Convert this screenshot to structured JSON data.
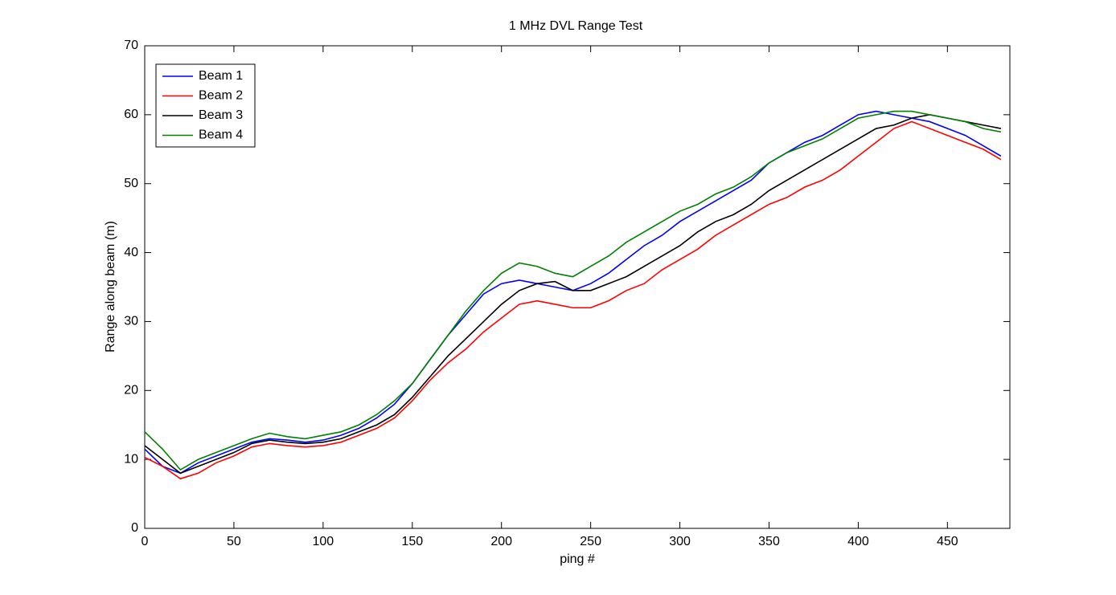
{
  "chart_data": {
    "type": "line",
    "title": "1 MHz DVL Range Test",
    "x_label": "ping #",
    "y_label": "Range along beam (m)",
    "x": [
      0,
      10,
      20,
      30,
      40,
      50,
      60,
      70,
      80,
      90,
      100,
      110,
      120,
      130,
      140,
      150,
      160,
      170,
      180,
      190,
      200,
      210,
      220,
      230,
      240,
      250,
      260,
      270,
      280,
      290,
      300,
      310,
      320,
      330,
      340,
      350,
      360,
      370,
      380,
      390,
      400,
      410,
      420,
      430,
      440,
      450,
      460,
      470,
      480
    ],
    "series": [
      {
        "name": "Beam 1",
        "color": "#0000ff",
        "values": [
          11.5,
          9,
          8,
          9.5,
          10.5,
          11.5,
          12.5,
          13,
          12.8,
          12.5,
          12.8,
          13.5,
          14.5,
          16,
          18,
          21,
          24.5,
          28,
          31,
          34,
          35.5,
          36,
          35.5,
          35,
          34.5,
          35.5,
          37,
          39,
          41,
          42.5,
          44.5,
          46,
          47.5,
          49,
          50.5,
          53,
          54.5,
          56,
          57,
          58.5,
          60,
          60.5,
          60,
          59.5,
          59,
          58,
          57,
          55.5,
          54
        ]
      },
      {
        "name": "Beam 2",
        "color": "#ff0000",
        "values": [
          10.3,
          9,
          7.2,
          8,
          9.5,
          10.5,
          11.8,
          12.3,
          12,
          11.8,
          12,
          12.5,
          13.5,
          14.5,
          16,
          18.5,
          21.5,
          24,
          26,
          28.5,
          30.5,
          32.5,
          33,
          32.5,
          32,
          32,
          33,
          34.5,
          35.5,
          37.5,
          39,
          40.5,
          42.5,
          44,
          45.5,
          47,
          48,
          49.5,
          50.5,
          52,
          54,
          56,
          58,
          59,
          58,
          57,
          56,
          55,
          53.5
        ]
      },
      {
        "name": "Beam 3",
        "color": "#000000",
        "values": [
          12,
          10,
          8,
          9,
          10,
          11,
          12.3,
          12.8,
          12.5,
          12.3,
          12.5,
          13,
          14,
          15,
          16.5,
          19,
          22,
          25,
          27.5,
          30,
          32.5,
          34.5,
          35.5,
          35.8,
          34.5,
          34.5,
          35.5,
          36.5,
          38,
          39.5,
          41,
          43,
          44.5,
          45.5,
          47,
          49,
          50.5,
          52,
          53.5,
          55,
          56.5,
          58,
          58.5,
          59.5,
          60,
          59.5,
          59,
          58.5,
          58
        ]
      },
      {
        "name": "Beam 4",
        "color": "#008000",
        "values": [
          14,
          11.5,
          8.5,
          10,
          11,
          12,
          13,
          13.8,
          13.3,
          13,
          13.5,
          14,
          15,
          16.5,
          18.5,
          21,
          24.5,
          28,
          31.5,
          34.5,
          37,
          38.5,
          38,
          37,
          36.5,
          38,
          39.5,
          41.5,
          43,
          44.5,
          46,
          47,
          48.5,
          49.5,
          51,
          53,
          54.5,
          55.5,
          56.5,
          58,
          59.5,
          60,
          60.5,
          60.5,
          60,
          59.5,
          59,
          58,
          57.5
        ]
      }
    ],
    "xlim": [
      0,
      485
    ],
    "ylim": [
      0,
      70
    ],
    "xticks": [
      0,
      50,
      100,
      150,
      200,
      250,
      300,
      350,
      400,
      450
    ],
    "yticks": [
      0,
      10,
      20,
      30,
      40,
      50,
      60,
      70
    ],
    "legend": "upper left"
  }
}
